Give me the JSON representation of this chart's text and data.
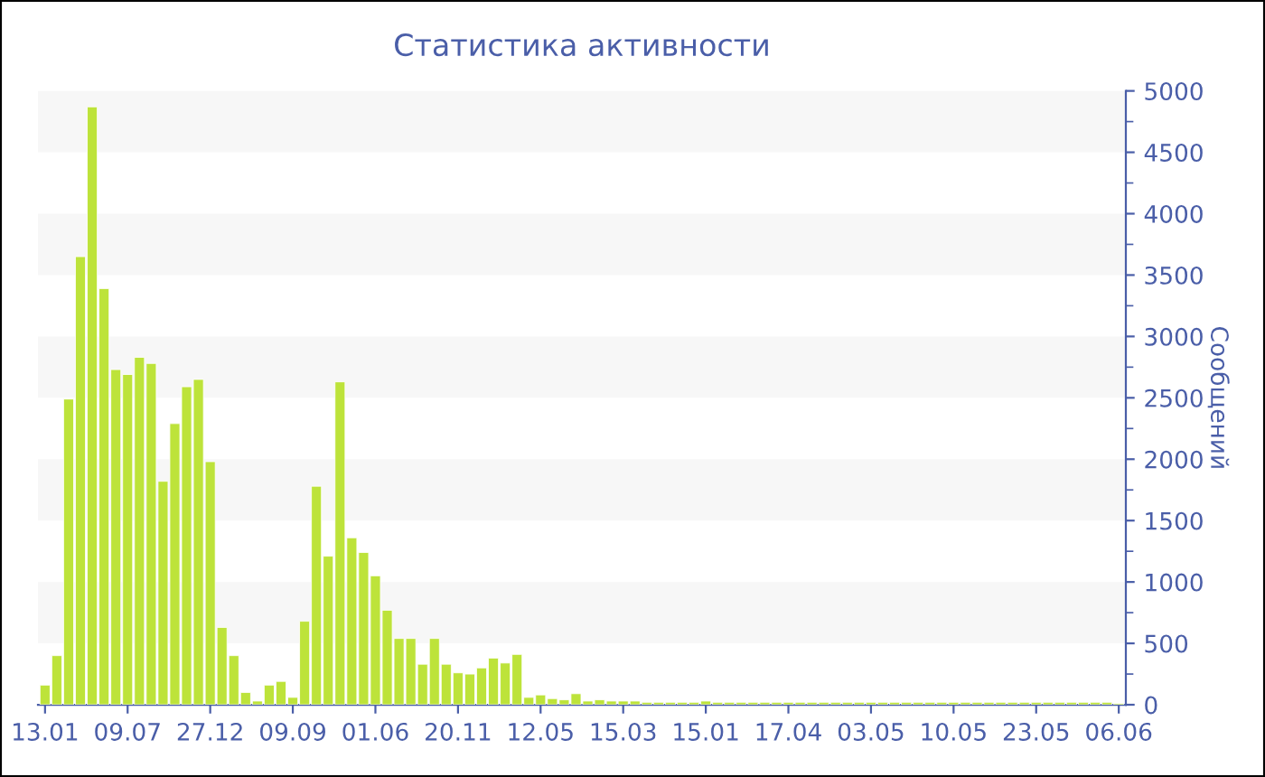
{
  "chart_data": {
    "type": "bar",
    "title": "Статистика активности",
    "ylabel": "Сообщений",
    "color": "#bde33a",
    "categories": [
      "13.01",
      null,
      null,
      null,
      null,
      null,
      null,
      "09.07",
      null,
      null,
      null,
      null,
      null,
      null,
      "27.12",
      null,
      null,
      null,
      null,
      null,
      null,
      "09.09",
      null,
      null,
      null,
      null,
      null,
      null,
      "01.06",
      null,
      null,
      null,
      null,
      null,
      null,
      "20.11",
      null,
      null,
      null,
      null,
      null,
      null,
      "12.05",
      null,
      null,
      null,
      null,
      null,
      null,
      "15.03",
      null,
      null,
      null,
      null,
      null,
      null,
      "15.01",
      null,
      null,
      null,
      null,
      null,
      null,
      "17.04",
      null,
      null,
      null,
      null,
      null,
      null,
      "03.05",
      null,
      null,
      null,
      null,
      null,
      null,
      "10.05",
      null,
      null,
      null,
      null,
      null,
      null,
      "23.05",
      null,
      null,
      null,
      null,
      null,
      null,
      "06.06"
    ],
    "values": [
      160,
      400,
      2490,
      3650,
      4870,
      3390,
      2730,
      2690,
      2830,
      2780,
      1820,
      2290,
      2590,
      2650,
      1980,
      630,
      400,
      100,
      30,
      160,
      190,
      60,
      680,
      1780,
      1210,
      2630,
      1360,
      1240,
      1050,
      770,
      540,
      540,
      330,
      540,
      330,
      260,
      250,
      300,
      380,
      340,
      410,
      60,
      80,
      50,
      40,
      90,
      30,
      40,
      30,
      30,
      30,
      20,
      20,
      20,
      20,
      20,
      30,
      20,
      20,
      20,
      20,
      20,
      20,
      20,
      20,
      20,
      20,
      20,
      20,
      20,
      20,
      20,
      20,
      20,
      20,
      20,
      20,
      20,
      20,
      20,
      20,
      20,
      20,
      20,
      20,
      20,
      20,
      20,
      20,
      20,
      20,
      10
    ],
    "ylim": [
      0,
      5000
    ],
    "yticks": [
      0,
      500,
      1000,
      1500,
      2000,
      2500,
      3000,
      3500,
      4000,
      4500,
      5000
    ],
    "bands": [
      {
        "axis": "y",
        "from": 500,
        "to": 1000,
        "color": "#f7f7f7"
      },
      {
        "axis": "y",
        "from": 1500,
        "to": 2000,
        "color": "#f7f7f7"
      },
      {
        "axis": "y",
        "from": 2500,
        "to": 3000,
        "color": "#f7f7f7"
      },
      {
        "axis": "y",
        "from": 3500,
        "to": 4000,
        "color": "#f7f7f7"
      },
      {
        "axis": "y",
        "from": 4500,
        "to": 5000,
        "color": "#f7f7f7"
      }
    ]
  }
}
